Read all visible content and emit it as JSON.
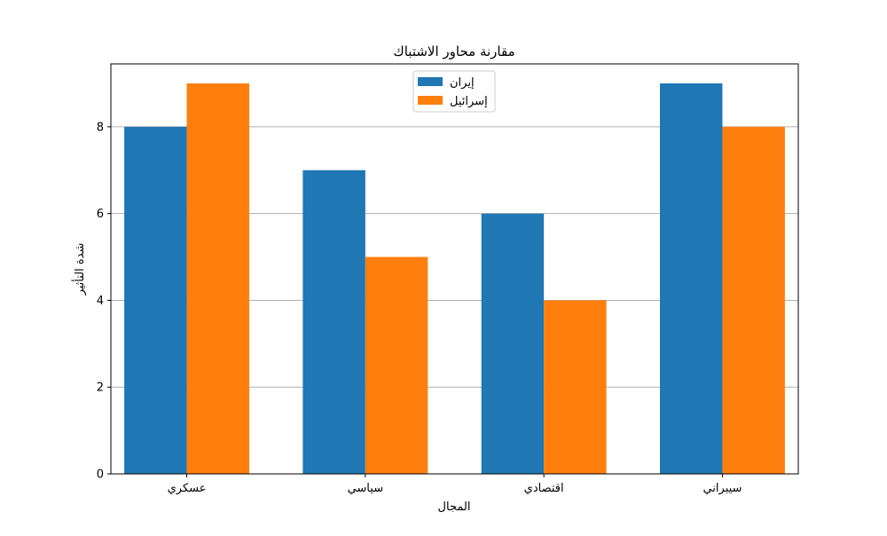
{
  "chart_data": {
    "type": "bar",
    "title": "مقارنة محاور الاشتباك",
    "xlabel": "المجال",
    "ylabel": "شدة التأثير",
    "categories": [
      "عسكري",
      "سياسي",
      "اقتصادي",
      "سيبراني"
    ],
    "series": [
      {
        "name": "إيران",
        "values": [
          8,
          7,
          6,
          9
        ],
        "color": "#1f77b4"
      },
      {
        "name": "إسرائيل",
        "values": [
          9,
          5,
          4,
          8
        ],
        "color": "#ff7f0e"
      }
    ],
    "ylim": [
      0,
      9.45
    ],
    "yticks": [
      0,
      2,
      4,
      6,
      8
    ],
    "grid": "y",
    "legend_position": "top-center"
  }
}
